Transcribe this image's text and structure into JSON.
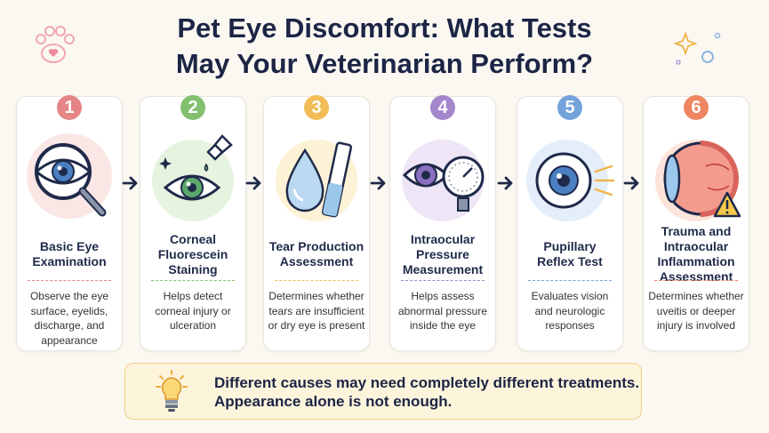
{
  "header": {
    "title": [
      "Pet Eye Discomfort: What Tests",
      "May Your Veterinarian Perform?"
    ]
  },
  "steps": [
    {
      "number": "1",
      "title": [
        "Basic Eye",
        "Examination"
      ],
      "description": [
        "Observe the eye",
        "surface, eyelids,",
        "discharge, and",
        "appearance"
      ]
    },
    {
      "number": "2",
      "title": [
        "Corneal",
        "Fluorescein",
        "Staining"
      ],
      "description": [
        "Helps detect",
        "corneal injury or",
        "ulceration"
      ]
    },
    {
      "number": "3",
      "title": [
        "Tear Production",
        "Assessment"
      ],
      "description": [
        "Determines whether",
        "tears are insufficient",
        "or dry eye is present"
      ]
    },
    {
      "number": "4",
      "title": [
        "Intraocular",
        "Pressure",
        "Measurement"
      ],
      "description": [
        "Helps assess",
        "abnormal pressure",
        "inside the eye"
      ]
    },
    {
      "number": "5",
      "title": [
        "Pupillary",
        "Reflex Test"
      ],
      "description": [
        "Evaluates vision",
        "and neurologic",
        "responses"
      ]
    },
    {
      "number": "6",
      "title": [
        "Trauma and",
        "Intraocular",
        "Inflammation",
        "Assessment"
      ],
      "description": [
        "Determines whether",
        "uveitis or deeper",
        "injury is involved"
      ]
    }
  ],
  "note": [
    "Different causes may need completely different treatments.",
    "Appearance alone is not enough."
  ]
}
